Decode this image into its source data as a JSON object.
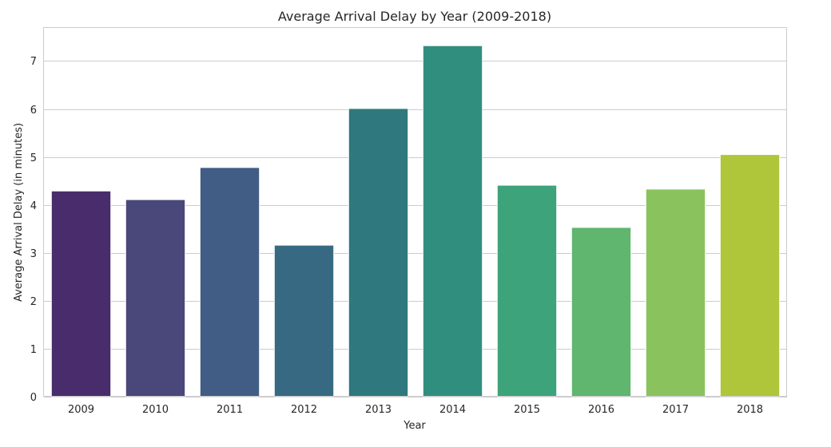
{
  "chart_data": {
    "type": "bar",
    "title": "Average Arrival Delay by Year (2009-2018)",
    "xlabel": "Year",
    "ylabel": "Average Arrival Delay (in minutes)",
    "categories": [
      "2009",
      "2010",
      "2011",
      "2012",
      "2013",
      "2014",
      "2015",
      "2016",
      "2017",
      "2018"
    ],
    "values": [
      4.29,
      4.11,
      4.78,
      3.16,
      6.01,
      7.32,
      4.41,
      3.53,
      4.33,
      5.05
    ],
    "colors": [
      "#482c6c",
      "#4a477b",
      "#425d85",
      "#376a82",
      "#2f787e",
      "#308e7f",
      "#3da37a",
      "#60b56f",
      "#8ac35d",
      "#b0c63a"
    ],
    "yticks": [
      0,
      1,
      2,
      3,
      4,
      5,
      6,
      7
    ],
    "ylim": [
      0,
      7.69
    ],
    "grid": "y-major",
    "legend": "none"
  }
}
